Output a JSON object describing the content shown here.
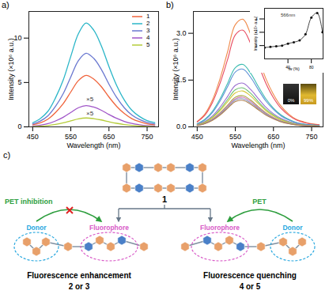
{
  "chart_data": [
    {
      "type": "line",
      "x_label": "Wavelength (nm)",
      "y_label": "Intensity (×10⁶ a.u.)",
      "x": [
        450,
        470,
        490,
        510,
        530,
        550,
        570,
        590,
        610,
        630,
        650,
        670,
        690,
        710,
        730,
        750,
        770
      ],
      "series": [
        {
          "name": "1",
          "color": "#f0643c",
          "values": [
            0.23,
            0.46,
            0.87,
            1.62,
            2.61,
            3.94,
            5.22,
            5.8,
            5.39,
            4.52,
            3.36,
            2.32,
            1.51,
            0.93,
            0.58,
            0.35,
            0.23
          ]
        },
        {
          "name": "2",
          "color": "#2bb6c8",
          "values": [
            0.47,
            0.94,
            1.76,
            3.28,
            5.27,
            7.96,
            10.5,
            11.7,
            10.9,
            9.13,
            6.79,
            4.68,
            3.04,
            1.87,
            1.17,
            0.7,
            0.47
          ]
        },
        {
          "name": "3",
          "color": "#6a78d0",
          "values": [
            0.33,
            0.66,
            1.25,
            2.32,
            3.74,
            5.64,
            7.47,
            8.3,
            7.72,
            6.47,
            4.81,
            3.32,
            2.16,
            1.33,
            0.83,
            0.5,
            0.33
          ]
        },
        {
          "name": "4",
          "color": "#a055c8",
          "values": [
            0.1,
            0.19,
            0.36,
            0.67,
            1.08,
            1.63,
            2.16,
            2.4,
            2.23,
            1.87,
            1.39,
            0.96,
            0.62,
            0.38,
            0.24,
            0.14,
            0.1
          ]
        },
        {
          "name": "5",
          "color": "#b5cc3a",
          "values": [
            0.04,
            0.08,
            0.15,
            0.28,
            0.45,
            0.68,
            0.9,
            1.0,
            0.93,
            0.78,
            0.58,
            0.4,
            0.26,
            0.16,
            0.1,
            0.06,
            0.04
          ]
        }
      ],
      "xlim": [
        440,
        780
      ],
      "xticks": [
        450,
        550,
        650,
        750
      ],
      "ylim": [
        0,
        13
      ],
      "yticks": [
        0,
        5,
        10
      ],
      "legend": "top-right",
      "annotations": [
        {
          "text": "×5",
          "x": 600,
          "y": 3.1
        },
        {
          "text": "×5",
          "x": 600,
          "y": 1.5
        }
      ]
    },
    {
      "type": "line",
      "x_label": "Wavelength (nm)",
      "y_label": "Intensity (×10⁶ a.u.)",
      "x": [
        450,
        470,
        490,
        510,
        530,
        550,
        570,
        590,
        610,
        630,
        650,
        670,
        690,
        710,
        730,
        750,
        770
      ],
      "series": [
        {
          "color": "#f08a4b",
          "values": [
            0.17,
            0.41,
            0.86,
            1.55,
            2.42,
            3.28,
            3.45,
            2.97,
            2.24,
            1.55,
            1.04,
            0.66,
            0.41,
            0.24,
            0.16,
            0.1,
            0.07
          ]
        },
        {
          "color": "#e84a5f",
          "values": [
            0.16,
            0.37,
            0.78,
            1.4,
            2.17,
            2.95,
            3.1,
            2.67,
            2.02,
            1.4,
            0.93,
            0.59,
            0.37,
            0.22,
            0.14,
            0.09,
            0.06
          ]
        },
        {
          "color": "#3cbcb0",
          "values": [
            0.1,
            0.24,
            0.5,
            0.9,
            1.4,
            1.9,
            2.0,
            1.72,
            1.3,
            0.9,
            0.6,
            0.38,
            0.24,
            0.14,
            0.09,
            0.06,
            0.04
          ]
        },
        {
          "color": "#5b8fd6",
          "values": [
            0.09,
            0.22,
            0.46,
            0.83,
            1.3,
            1.76,
            1.85,
            1.59,
            1.2,
            0.83,
            0.56,
            0.35,
            0.22,
            0.13,
            0.08,
            0.06,
            0.04
          ]
        },
        {
          "color": "#9b6fd0",
          "values": [
            0.07,
            0.17,
            0.35,
            0.63,
            0.98,
            1.33,
            1.4,
            1.2,
            0.91,
            0.63,
            0.42,
            0.27,
            0.17,
            0.1,
            0.06,
            0.04,
            0.03
          ]
        },
        {
          "color": "#6cc070",
          "values": [
            0.06,
            0.15,
            0.31,
            0.56,
            0.88,
            1.19,
            1.25,
            1.08,
            0.81,
            0.56,
            0.38,
            0.24,
            0.15,
            0.09,
            0.06,
            0.04,
            0.03
          ]
        },
        {
          "color": "#d6c83a",
          "values": [
            0.06,
            0.14,
            0.29,
            0.52,
            0.81,
            1.09,
            1.15,
            0.99,
            0.75,
            0.52,
            0.35,
            0.22,
            0.14,
            0.08,
            0.05,
            0.03,
            0.02
          ]
        },
        {
          "color": "#a8a848",
          "values": [
            0.05,
            0.12,
            0.25,
            0.45,
            0.7,
            0.95,
            1.0,
            0.86,
            0.65,
            0.45,
            0.3,
            0.19,
            0.12,
            0.07,
            0.05,
            0.03,
            0.02
          ]
        },
        {
          "color": "#d27ab8",
          "values": [
            0.05,
            0.11,
            0.24,
            0.43,
            0.67,
            0.9,
            0.95,
            0.82,
            0.62,
            0.43,
            0.29,
            0.18,
            0.11,
            0.07,
            0.04,
            0.03,
            0.02
          ]
        },
        {
          "color": "#8899bb",
          "values": [
            0.05,
            0.11,
            0.23,
            0.41,
            0.63,
            0.86,
            0.9,
            0.77,
            0.59,
            0.41,
            0.27,
            0.17,
            0.11,
            0.06,
            0.04,
            0.03,
            0.02
          ]
        },
        {
          "color": "#b08050",
          "values": [
            0.04,
            0.1,
            0.21,
            0.38,
            0.6,
            0.81,
            0.85,
            0.73,
            0.55,
            0.38,
            0.26,
            0.16,
            0.1,
            0.06,
            0.04,
            0.03,
            0.02
          ]
        }
      ],
      "xlim": [
        440,
        780
      ],
      "xticks": [
        450,
        550,
        650,
        750
      ],
      "ylim": [
        0,
        3.7
      ],
      "yticks": [
        {
          "value": 0,
          "label": "0.0"
        },
        {
          "value": 1.5,
          "label": "1.5"
        },
        {
          "value": 3,
          "label": "3.0"
        }
      ]
    },
    {
      "type": "line",
      "marker": "circle",
      "x_label": "fw (%)",
      "y_label": "Intensity (×10⁶ a.u.)",
      "x": [
        0,
        10,
        20,
        30,
        40,
        50,
        60,
        70,
        80,
        90,
        99
      ],
      "series": [
        {
          "color": "#111111",
          "values": [
            0.85,
            0.9,
            0.95,
            1.0,
            1.15,
            1.25,
            1.4,
            1.85,
            3.1,
            3.45,
            2.0
          ]
        }
      ],
      "xlim": [
        0,
        100
      ],
      "xticks": [
        40,
        80
      ],
      "ylim": [
        0,
        3.8
      ],
      "yticks": [
        1,
        2,
        3
      ],
      "annotations": [
        {
          "text": "566nm",
          "x": 40,
          "y": 3.3
        }
      ]
    }
  ],
  "panel_labels": [
    "a)",
    "b)",
    "c)"
  ],
  "vials": [
    "0%",
    "99%"
  ],
  "diagram": {
    "central_label": "1",
    "left": {
      "arrow_label": "PET inhibition",
      "donor": "Donor",
      "fluorophore": "Fluorophore",
      "result": "Fluorescence enhancement",
      "compounds": "2 or 3"
    },
    "right": {
      "arrow_label": "PET",
      "donor": "Donor",
      "fluorophore": "Fluorophore",
      "result": "Fluorescence quenching",
      "compounds": "4 or 5"
    }
  }
}
